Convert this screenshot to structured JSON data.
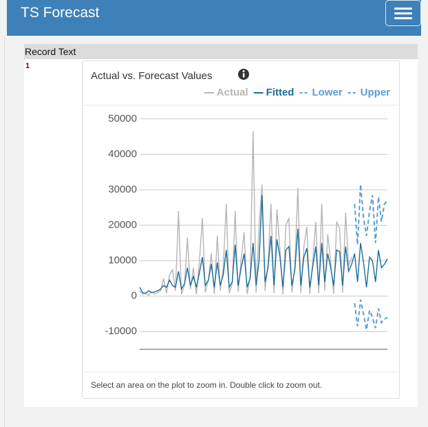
{
  "header": {
    "title": "TS Forecast"
  },
  "table": {
    "columns": [
      "Record Text"
    ],
    "rows": [
      [
        "1"
      ]
    ]
  },
  "chart_data": {
    "type": "line",
    "title": "Actual vs. Forecast Values",
    "footnote": "Select an area on the plot to zoom in. Double click to zoom out.",
    "ylim": [
      -15000,
      52500
    ],
    "yticks": [
      -10000,
      0,
      10000,
      20000,
      30000,
      40000,
      50000
    ],
    "grid": true,
    "legend": "top-right",
    "series": [
      {
        "name": "Actual",
        "color": "#b5b5b5",
        "dash": false,
        "values": [
          1500,
          500,
          800,
          300,
          1200,
          600,
          1000,
          1500,
          5000,
          800,
          6000,
          7500,
          1500,
          24000,
          500,
          3000,
          16500,
          2000,
          8000,
          500,
          9500,
          22000,
          1000,
          4500,
          12000,
          600,
          17000,
          1500,
          8000,
          26000,
          800,
          3500,
          24000,
          1200,
          10500,
          18000,
          600,
          5000,
          46500,
          1000,
          20000,
          31500,
          1500,
          9000,
          26000,
          800,
          24500,
          13000,
          500,
          20000,
          22000,
          1000,
          8500,
          30500,
          900,
          14000,
          19500,
          600,
          10000,
          21000,
          800,
          26000,
          1500,
          17500,
          9500,
          600,
          21000,
          19000,
          1000,
          23500,
          8500,
          11000,
          null,
          null,
          null,
          null,
          null,
          null,
          null,
          null,
          null,
          null,
          null,
          null
        ]
      },
      {
        "name": "Fitted",
        "color": "#1a6c9c",
        "dash": false,
        "values": [
          2500,
          1000,
          800,
          1500,
          1000,
          1200,
          1500,
          2000,
          3000,
          2500,
          4500,
          3000,
          2500,
          7000,
          2000,
          3500,
          8000,
          3000,
          5500,
          2500,
          6500,
          11000,
          3000,
          4500,
          9000,
          2500,
          9500,
          3000,
          6000,
          13000,
          2500,
          4000,
          14500,
          3000,
          8000,
          12000,
          2500,
          5000,
          15000,
          3000,
          10000,
          28500,
          4000,
          8000,
          17000,
          3000,
          16000,
          11000,
          2500,
          13000,
          14000,
          3000,
          7500,
          19000,
          3000,
          11000,
          13500,
          2500,
          8500,
          14000,
          3000,
          15000,
          4000,
          12000,
          8000,
          3000,
          13000,
          12500,
          3000,
          14000,
          7000,
          9000,
          12000,
          4000,
          15000,
          9500,
          2500,
          11000,
          10000,
          4000,
          13000,
          8000,
          9000,
          10500
        ]
      },
      {
        "name": "Lower",
        "color": "#5b9bd5",
        "dash": true,
        "values": [
          null,
          null,
          null,
          null,
          null,
          null,
          null,
          null,
          null,
          null,
          null,
          null,
          null,
          null,
          null,
          null,
          null,
          null,
          null,
          null,
          null,
          null,
          null,
          null,
          null,
          null,
          null,
          null,
          null,
          null,
          null,
          null,
          null,
          null,
          null,
          null,
          null,
          null,
          null,
          null,
          null,
          null,
          null,
          null,
          null,
          null,
          null,
          null,
          null,
          null,
          null,
          null,
          null,
          null,
          null,
          null,
          null,
          null,
          null,
          null,
          null,
          null,
          null,
          null,
          null,
          null,
          null,
          null,
          null,
          null,
          null,
          null,
          -2000,
          -8500,
          -1000,
          -5000,
          -9500,
          -4000,
          -6000,
          -9000,
          -3500,
          -7500,
          -6500,
          -6000
        ]
      },
      {
        "name": "Upper",
        "color": "#5b9bd5",
        "dash": true,
        "values": [
          null,
          null,
          null,
          null,
          null,
          null,
          null,
          null,
          null,
          null,
          null,
          null,
          null,
          null,
          null,
          null,
          null,
          null,
          null,
          null,
          null,
          null,
          null,
          null,
          null,
          null,
          null,
          null,
          null,
          null,
          null,
          null,
          null,
          null,
          null,
          null,
          null,
          null,
          null,
          null,
          null,
          null,
          null,
          null,
          null,
          null,
          null,
          null,
          null,
          null,
          null,
          null,
          null,
          null,
          null,
          null,
          null,
          null,
          null,
          null,
          null,
          null,
          null,
          null,
          null,
          null,
          null,
          null,
          null,
          null,
          null,
          null,
          26000,
          14500,
          31500,
          22000,
          17000,
          24000,
          28500,
          15000,
          28000,
          21000,
          26000,
          27000
        ]
      }
    ]
  }
}
